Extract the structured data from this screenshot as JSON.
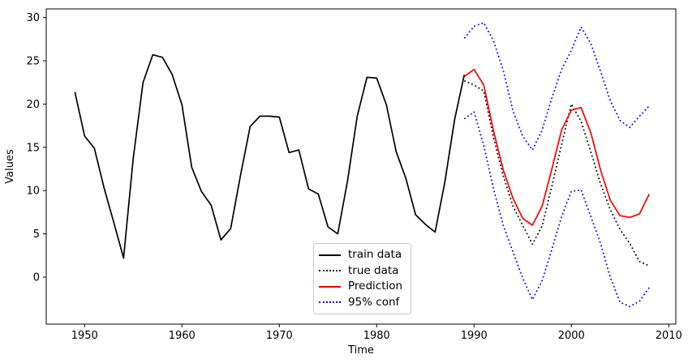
{
  "figure": {
    "background": "#ffffff",
    "spine_color": "#000000",
    "tick_color": "#000000"
  },
  "chart_data": {
    "type": "line",
    "title": "",
    "xlabel": "Time",
    "ylabel": "Values",
    "xlim": [
      1946.06,
      2010.73
    ],
    "ylim": [
      -5.43,
      31.0
    ],
    "x_ticks": [
      1950,
      1960,
      1970,
      1980,
      1990,
      2000,
      2010
    ],
    "y_ticks": [
      0,
      5,
      10,
      15,
      20,
      25,
      30
    ],
    "grid": false,
    "legend": {
      "position": "lower-center-left",
      "border_color": "#cccccc",
      "items": [
        {
          "label": "train data",
          "color": "#000000",
          "style": "solid"
        },
        {
          "label": "true data",
          "color": "#000000",
          "style": "dotted"
        },
        {
          "label": "Prediction",
          "color": "#ff0000",
          "style": "solid"
        },
        {
          "label": "95% conf",
          "color": "#0000ff",
          "style": "dotted"
        }
      ]
    },
    "series": [
      {
        "name": "train data",
        "color": "#000000",
        "style": "solid",
        "x": [
          1949,
          1950,
          1951,
          1952,
          1953,
          1954,
          1955,
          1956,
          1957,
          1958,
          1959,
          1960,
          1961,
          1962,
          1963,
          1964,
          1965,
          1966,
          1967,
          1968,
          1969,
          1970,
          1971,
          1972,
          1973,
          1974,
          1975,
          1976,
          1977,
          1978,
          1979,
          1980,
          1981,
          1982,
          1983,
          1984,
          1985,
          1986,
          1987,
          1988,
          1989
        ],
        "y": [
          21.4,
          16.3,
          14.9,
          10.3,
          6.3,
          2.2,
          13.8,
          22.5,
          25.7,
          25.4,
          23.4,
          19.9,
          12.7,
          9.9,
          8.3,
          4.3,
          5.6,
          11.7,
          17.4,
          18.6,
          18.6,
          18.5,
          14.4,
          14.7,
          10.2,
          9.6,
          5.8,
          5.0,
          11.1,
          18.6,
          23.1,
          23.0,
          19.9,
          14.5,
          11.4,
          7.2,
          6.1,
          5.2,
          11.0,
          18.2,
          23.4
        ]
      },
      {
        "name": "true data",
        "color": "#000000",
        "style": "dotted",
        "x": [
          1989,
          1990,
          1991,
          1992,
          1993,
          1994,
          1995,
          1996,
          1997,
          1998,
          1999,
          2000,
          2001,
          2002,
          2003,
          2004,
          2005,
          2006,
          2007,
          2008
        ],
        "y": [
          22.7,
          22.2,
          21.5,
          16.1,
          11.7,
          8.2,
          6.0,
          3.8,
          5.9,
          10.5,
          15.3,
          20.0,
          18.0,
          14.5,
          10.8,
          7.8,
          5.5,
          3.9,
          1.8,
          1.3
        ]
      },
      {
        "name": "Prediction",
        "color": "#ff0000",
        "style": "solid",
        "x": [
          1989,
          1990,
          1991,
          1992,
          1993,
          1994,
          1995,
          1996,
          1997,
          1998,
          1999,
          2000,
          2001,
          2002,
          2003,
          2004,
          2005,
          2006,
          2007,
          2008
        ],
        "y": [
          23.2,
          24.0,
          22.2,
          16.9,
          12.4,
          9.1,
          6.8,
          6.0,
          8.2,
          12.5,
          17.0,
          19.3,
          19.6,
          16.7,
          12.4,
          8.9,
          7.1,
          6.9,
          7.3,
          9.6
        ]
      },
      {
        "name": "95% conf upper",
        "color": "#0000ff",
        "style": "dotted",
        "x": [
          1989,
          1990,
          1991,
          1992,
          1993,
          1994,
          1995,
          1996,
          1997,
          1998,
          1999,
          2000,
          2001,
          2002,
          2003,
          2004,
          2005,
          2006,
          2007,
          2008
        ],
        "y": [
          27.6,
          29.0,
          29.4,
          27.3,
          23.9,
          19.2,
          16.3,
          14.7,
          17.0,
          20.7,
          24.0,
          26.2,
          28.9,
          27.0,
          23.8,
          20.4,
          18.1,
          17.3,
          18.6,
          19.8
        ]
      },
      {
        "name": "95% conf lower",
        "color": "#0000ff",
        "style": "dotted",
        "x": [
          1989,
          1990,
          1991,
          1992,
          1993,
          1994,
          1995,
          1996,
          1997,
          1998,
          1999,
          2000,
          2001,
          2002,
          2003,
          2004,
          2005,
          2006,
          2007,
          2008
        ],
        "y": [
          18.3,
          19.1,
          15.2,
          10.2,
          6.0,
          2.9,
          -0.1,
          -2.6,
          -0.4,
          3.2,
          7.0,
          9.9,
          10.1,
          7.0,
          3.9,
          0.0,
          -2.9,
          -3.4,
          -2.8,
          -1.2
        ]
      }
    ]
  }
}
